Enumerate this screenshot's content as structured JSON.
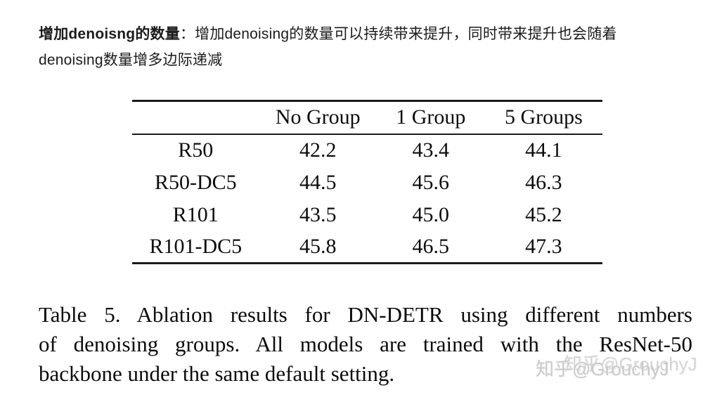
{
  "intro": {
    "bold_label": "增加denoisng的数量",
    "line1_rest": "：增加denoising的数量可以持续带来提升，同时带来提升也会随着",
    "line2": "denoising数量增多边际递减"
  },
  "table": {
    "col_headers": [
      "",
      "No Group",
      "1 Group",
      "5 Groups"
    ],
    "rows": [
      {
        "label": "R50",
        "values": [
          "42.2",
          "43.4",
          "44.1"
        ]
      },
      {
        "label": "R50-DC5",
        "values": [
          "44.5",
          "45.6",
          "46.3"
        ]
      },
      {
        "label": "R101",
        "values": [
          "43.5",
          "45.0",
          "45.2"
        ]
      },
      {
        "label": "R101-DC5",
        "values": [
          "45.8",
          "46.5",
          "47.3"
        ]
      }
    ]
  },
  "chart_data": {
    "type": "table",
    "title": "Table 5. Ablation results for DN-DETR using different numbers of denoising groups.",
    "categories": [
      "No Group",
      "1 Group",
      "5 Groups"
    ],
    "series": [
      {
        "name": "R50",
        "values": [
          42.2,
          43.4,
          44.1
        ]
      },
      {
        "name": "R50-DC5",
        "values": [
          44.5,
          45.6,
          46.3
        ]
      },
      {
        "name": "R101",
        "values": [
          43.5,
          45.0,
          45.2
        ]
      },
      {
        "name": "R101-DC5",
        "values": [
          45.8,
          46.5,
          47.3
        ]
      }
    ]
  },
  "caption": {
    "lines": [
      "Table 5.  Ablation results for DN-DETR using different numbers",
      "of denoising groups.  All models are trained with the ResNet-50",
      "backbone under the same default setting."
    ],
    "full_text": "Table 5. Ablation results for DN-DETR using different numbers of denoising groups. All models are trained with the ResNet-50 backbone under the same default setting."
  },
  "watermark": {
    "text": "知乎@GrouchyJ"
  },
  "colors": {
    "background": "#ffffff",
    "intro_text": "#1c1c1c",
    "table_text": "#0d0d0d",
    "rule": "#1b1b1b",
    "watermark": "#c9c9c9"
  }
}
